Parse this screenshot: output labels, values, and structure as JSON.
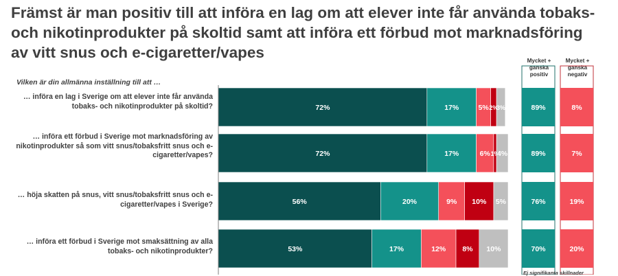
{
  "title": "Främst är man positiv till att införa en lag om att elever inte får använda tobaks- och nikotinprodukter på skoltid samt att införa ett förbud mot marknadsföring av vitt snus och e-cigaretter/vapes",
  "subtitle": "Vilken är din allmänna inställning till att …",
  "summary_headers": {
    "positive": "Mycket + ganska positiv",
    "negative": "Mycket + ganska negativ"
  },
  "footnote": "Ej signifikanta skillnader",
  "colors": {
    "very_positive": "#0b4f4f",
    "somewhat_positive": "#14928a",
    "somewhat_negative": "#f4505a",
    "very_negative": "#c00012",
    "dont_know": "#bfbfbf",
    "summary_positive": "#14928a",
    "summary_negative": "#f4505a"
  },
  "chart_data": {
    "type": "bar",
    "orientation": "horizontal",
    "stacked": true,
    "xlim": [
      0,
      100
    ],
    "categories": [
      "… införa en lag i Sverige om att elever inte får använda tobaks- och nikotinprodukter på skoltid?",
      "… införa ett förbud i Sverige mot marknadsföring av nikotinprodukter så som vitt snus/tobaksfritt snus och e-cigaretter/vapes?",
      "… höja skatten på snus, vitt snus/tobaksfritt snus och e-cigaretter/vapes i Sverige?",
      "… införa ett förbud i Sverige mot smaksättning av alla tobaks- och nikotinprodukter?"
    ],
    "series": [
      {
        "values": [
          72,
          72,
          56,
          53
        ],
        "labels": [
          "72%",
          "72%",
          "56%",
          "53%"
        ]
      },
      {
        "values": [
          17,
          17,
          20,
          17
        ],
        "labels": [
          "17%",
          "17%",
          "20%",
          "17%"
        ]
      },
      {
        "values": [
          5,
          6,
          9,
          12
        ],
        "labels": [
          "5%",
          "6%",
          "9%",
          "12%"
        ]
      },
      {
        "values": [
          2,
          1,
          10,
          8
        ],
        "labels": [
          "2%",
          "1%",
          "10%",
          "8%"
        ]
      },
      {
        "values": [
          3,
          4,
          5,
          10
        ],
        "labels": [
          "3%",
          "4%",
          "5%",
          "10%"
        ]
      }
    ],
    "summary_positive": [
      "89%",
      "89%",
      "76%",
      "70%"
    ],
    "summary_negative": [
      "8%",
      "7%",
      "19%",
      "20%"
    ]
  }
}
